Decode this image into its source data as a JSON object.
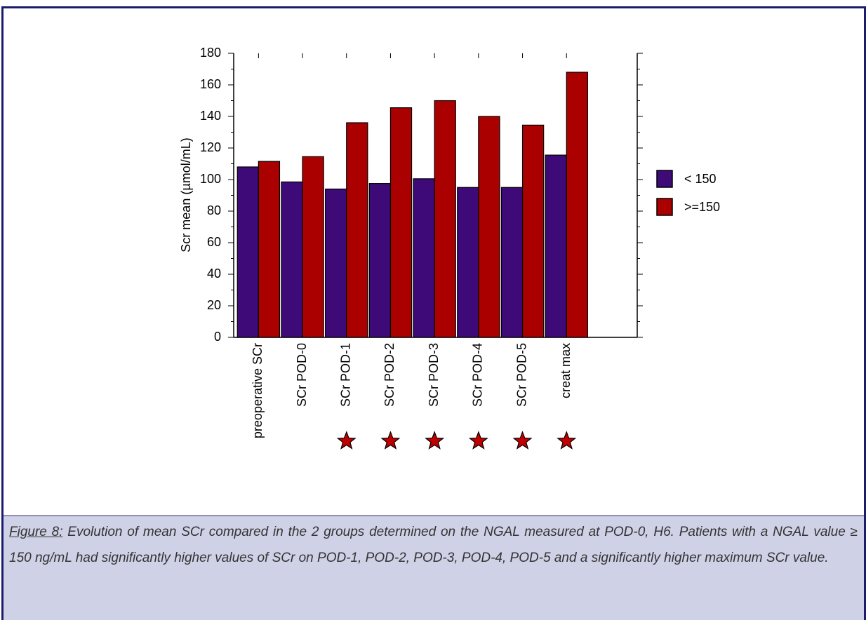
{
  "chart_data": {
    "type": "bar",
    "y_label": "Scr mean (µmol/mL)",
    "categories": [
      "preoperative SCr",
      "SCr POD-0",
      "SCr POD-1",
      "SCr POD-2",
      "SCr POD-3",
      "SCr POD-4",
      "SCr POD-5",
      "creat max"
    ],
    "series": [
      {
        "name": "< 150",
        "color": "#3d0a78",
        "values": [
          108,
          98.5,
          94,
          97.5,
          100.5,
          95,
          95,
          115.5
        ]
      },
      {
        "name": ">=150",
        "color": "#aa0000",
        "values": [
          111.5,
          114.5,
          136,
          145.5,
          150,
          140,
          134.5,
          168
        ]
      }
    ],
    "significant": [
      false,
      false,
      true,
      true,
      true,
      true,
      true,
      true
    ],
    "ylim": [
      0,
      180
    ],
    "yticks": [
      0,
      20,
      40,
      60,
      80,
      100,
      120,
      140,
      160,
      180
    ],
    "legend": "right"
  },
  "caption": {
    "label": "Figure 8:",
    "text": " Evolution of mean SCr compared in the 2 groups determined on the NGAL measured at POD-0, H6. Patients with a NGAL value ≥ 150 ng/mL had significantly higher values of SCr on POD-1, POD-2, POD-3, POD-4, POD-5 and a significantly higher maximum SCr value."
  }
}
